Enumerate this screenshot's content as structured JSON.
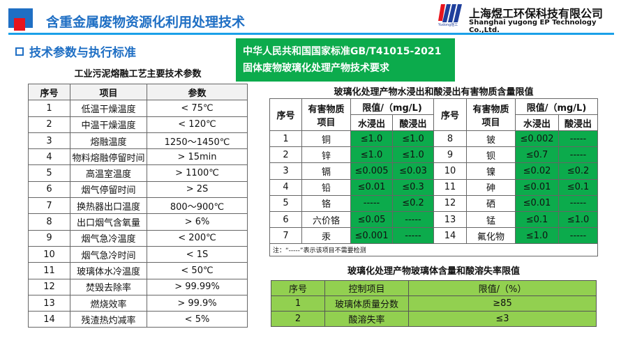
{
  "header": {
    "title": "含重金属废物资源化利用处理技术",
    "company_cn": "上海煜工环保科技有限公司",
    "company_en": "Shanghai yugong EP Technology Co.,Ltd.",
    "logo_sub": "Yudong煜工"
  },
  "section": {
    "heading": "技术参数与执行标准"
  },
  "standard": {
    "line1": "中华人民共和国国家标准GB/T41015-2021",
    "line2": "固体废物玻璃化处理产物技术要求"
  },
  "params_table": {
    "caption": "工业污泥熔融工艺主要技术参数",
    "headers": [
      "序号",
      "项目",
      "参数"
    ],
    "rows": [
      [
        "1",
        "低温干燥温度",
        "< 75℃"
      ],
      [
        "2",
        "中温干燥温度",
        "< 120℃"
      ],
      [
        "3",
        "熔融温度",
        "1250～1450℃"
      ],
      [
        "4",
        "物料熔融停留时间",
        "> 15min"
      ],
      [
        "5",
        "高温室温度",
        "> 1100℃"
      ],
      [
        "6",
        "烟气停留时间",
        "> 2S"
      ],
      [
        "7",
        "换热器出口温度",
        "800～900℃"
      ],
      [
        "8",
        "出口烟气含氧量",
        "> 6%"
      ],
      [
        "9",
        "烟气急冷温度",
        "< 200℃"
      ],
      [
        "10",
        "烟气急冷时间",
        "< 1S"
      ],
      [
        "11",
        "玻璃体水冷温度",
        "< 50℃"
      ],
      [
        "12",
        "焚毁去除率",
        "> 99.99%"
      ],
      [
        "13",
        "燃烧效率",
        "> 99.9%"
      ],
      [
        "14",
        "残渣热灼减率",
        "< 5%"
      ]
    ]
  },
  "leach_table": {
    "caption": "玻璃化处理产物水浸出和酸浸出有害物质含量限值",
    "h_no": "序号",
    "h_item": "有害物质项目",
    "h_limit": "限值/（mg/L)",
    "h_water": "水浸出",
    "h_acid": "酸浸出",
    "rows": [
      [
        "1",
        "铜",
        "≤1.0",
        "≤1.0",
        "8",
        "铍",
        "≤0.002",
        "-----"
      ],
      [
        "2",
        "锌",
        "≤1.0",
        "≤1.0",
        "9",
        "钡",
        "≤0.7",
        "-----"
      ],
      [
        "3",
        "镉",
        "≤0.005",
        "≤0.03",
        "10",
        "镍",
        "≤0.02",
        "≤0.2"
      ],
      [
        "4",
        "铅",
        "≤0.01",
        "≤0.3",
        "11",
        "砷",
        "≤0.01",
        "≤0.1"
      ],
      [
        "5",
        "铬",
        "-----",
        "≤0.2",
        "12",
        "硒",
        "≤0.01",
        "-----"
      ],
      [
        "6",
        "六价铬",
        "≤0.05",
        "-----",
        "13",
        "锰",
        "≤0.1",
        "≤1.0"
      ],
      [
        "7",
        "汞",
        "≤0.001",
        "-----",
        "14",
        "氟化物",
        "≤1.0",
        "-----"
      ]
    ],
    "note": "注：“-----”表示该项目不需要检测"
  },
  "glass_table": {
    "caption": "玻璃化处理产物玻璃体含量和酸溶失率限值",
    "headers": [
      "序号",
      "控制项目",
      "限值/（%）"
    ],
    "rows": [
      [
        "1",
        "玻璃体质量分数",
        "≥85"
      ],
      [
        "2",
        "酸溶失率",
        "≤3"
      ]
    ]
  }
}
